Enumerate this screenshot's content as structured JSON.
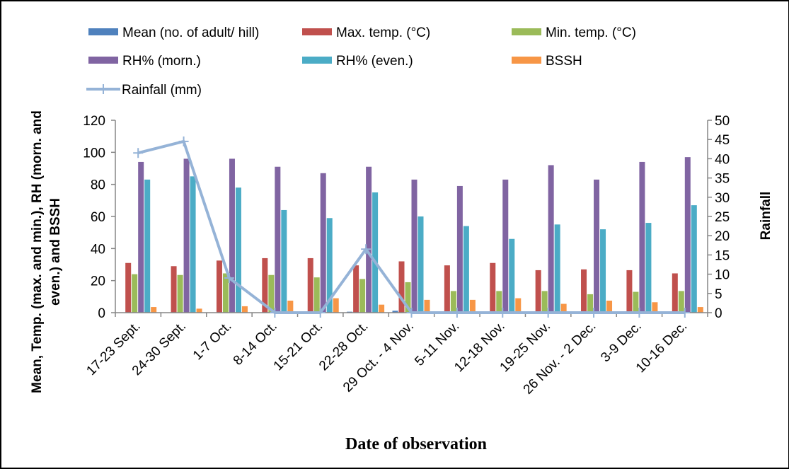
{
  "chart_data": {
    "type": "bar",
    "categories": [
      "17-23 Sept.",
      "24-30 Sept.",
      "1-7 Oct.",
      "8-14 Oct.",
      "15-21 Oct.",
      "22-28 Oct.",
      "29 Oct. - 4 Nov.",
      "5-11 Nov.",
      "12-18 Nov.",
      "19-25 Nov.",
      "26 Nov. - 2 Dec.",
      "3-9 Dec.",
      "10-16 Dec."
    ],
    "series": [
      {
        "name": "Mean (no. of adult/ hill)",
        "color": "#4f81bd",
        "axis": "left",
        "values": [
          0,
          0,
          0,
          0,
          0,
          0.6,
          1.2,
          0,
          0,
          0,
          0,
          0,
          0
        ]
      },
      {
        "name": "Max. temp. (°C)",
        "color": "#c0504d",
        "axis": "left",
        "values": [
          31,
          29,
          32.5,
          34,
          34,
          29.5,
          32,
          29.5,
          31,
          26.5,
          27,
          26.5,
          24.5
        ]
      },
      {
        "name": "Min. temp. (°C)",
        "color": "#9bbb59",
        "axis": "left",
        "values": [
          24,
          23.5,
          24.5,
          23.5,
          22,
          21,
          19,
          13.5,
          13.5,
          13.5,
          11.5,
          13,
          13.5
        ]
      },
      {
        "name": "RH% (morn.)",
        "color": "#8064a2",
        "axis": "left",
        "values": [
          94,
          96,
          96,
          91,
          87,
          91,
          83,
          79,
          83,
          92,
          83,
          94,
          97
        ]
      },
      {
        "name": "RH% (even.)",
        "color": "#4bacc6",
        "axis": "left",
        "values": [
          83,
          85,
          78,
          64,
          59,
          75,
          60,
          54,
          46,
          55,
          52,
          56,
          67
        ]
      },
      {
        "name": "BSSH",
        "color": "#f79646",
        "axis": "left",
        "values": [
          3.5,
          2.5,
          4,
          7.5,
          9,
          5,
          8,
          8,
          9,
          5.5,
          7.5,
          6.5,
          3.5
        ]
      },
      {
        "name": "Rainfall (mm)",
        "color": "#95b3d7",
        "axis": "right",
        "kind": "line",
        "values": [
          41.5,
          44.5,
          9,
          0,
          0,
          16.5,
          0,
          0,
          0,
          0,
          0,
          0,
          0
        ]
      }
    ],
    "xlabel": "Date of observation",
    "ylabel": "Mean, Temp. (max. and min.), RH (morn. and even.) and BSSH",
    "ylabel_right": "Rainfall",
    "ylim": [
      0,
      120
    ],
    "yticks": [
      "0",
      "20",
      "40",
      "60",
      "80",
      "100",
      "120"
    ],
    "ylim_right": [
      0,
      50
    ],
    "yticks_right": [
      "0",
      "5",
      "10",
      "15",
      "20",
      "25",
      "30",
      "35",
      "40",
      "45",
      "50"
    ],
    "grid": false,
    "legend_position": "top"
  }
}
